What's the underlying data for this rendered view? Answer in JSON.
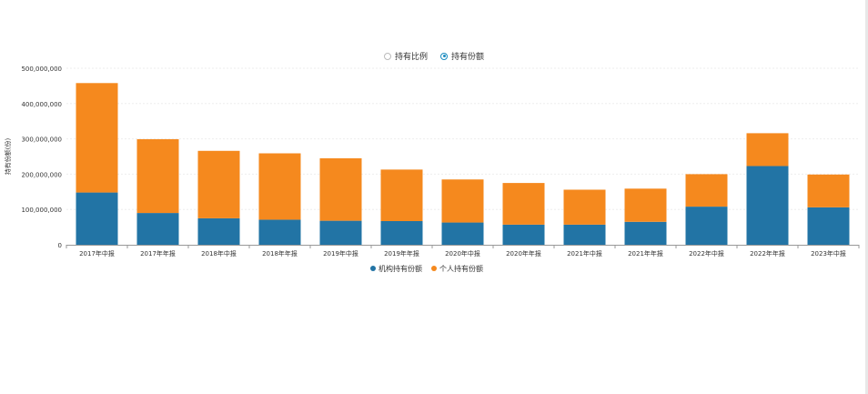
{
  "toggle": {
    "options": [
      {
        "label": "持有比例",
        "selected": false
      },
      {
        "label": "持有份额",
        "selected": true
      }
    ]
  },
  "colors": {
    "institution": "#2274a5",
    "individual": "#f5891e",
    "axis": "#999999",
    "grid": "#eeeeee"
  },
  "chart_data": {
    "type": "bar",
    "stacked": true,
    "ylabel": "持有份额(份)",
    "ylim": [
      0,
      500000000
    ],
    "yticks": [
      "0",
      "100,000,000",
      "200,000,000",
      "300,000,000",
      "400,000,000",
      "500,000,000"
    ],
    "ytick_values": [
      0,
      100000000,
      200000000,
      300000000,
      400000000,
      500000000
    ],
    "categories": [
      "2017年中报",
      "2017年年报",
      "2018年中报",
      "2018年年报",
      "2019年中报",
      "2019年年报",
      "2020年中报",
      "2020年年报",
      "2021年中报",
      "2021年年报",
      "2022年中报",
      "2022年年报",
      "2023年中报"
    ],
    "series": [
      {
        "name": "机构持有份额",
        "color": "#2274a5",
        "values": [
          148000000,
          90000000,
          75000000,
          71000000,
          68000000,
          67000000,
          63000000,
          57000000,
          57000000,
          65000000,
          108000000,
          223000000,
          106000000
        ]
      },
      {
        "name": "个人持有份额",
        "color": "#f5891e",
        "values": [
          310000000,
          209000000,
          191000000,
          188000000,
          177000000,
          146000000,
          122000000,
          118000000,
          99000000,
          94000000,
          92000000,
          93000000,
          93000000
        ]
      }
    ],
    "legend_position": "bottom",
    "grid": true
  }
}
